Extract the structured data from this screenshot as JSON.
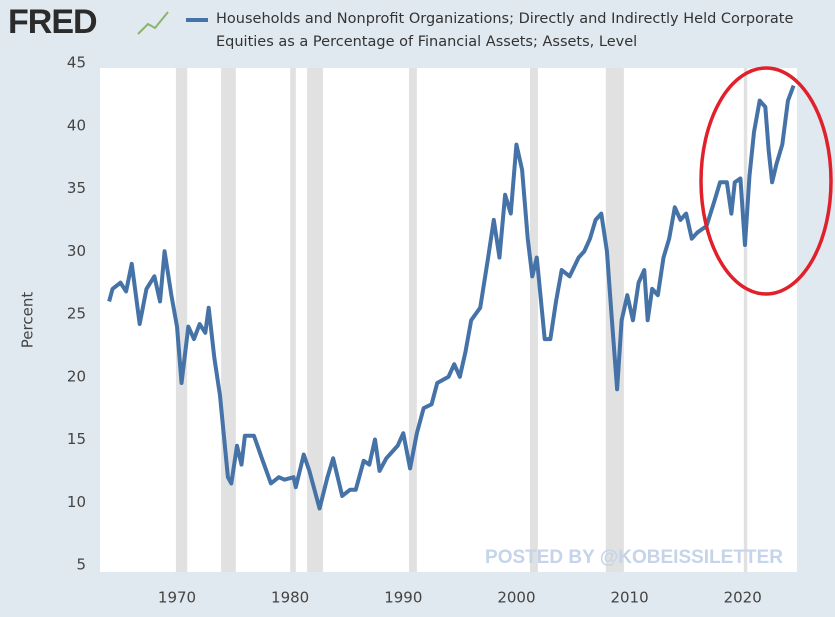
{
  "logo": "FRED",
  "chart_data": {
    "type": "line",
    "y_label": "Percent",
    "annotation": "POSTED BY @KOBEISSILETTER",
    "xlim": [
      1963.9,
      2024.8
    ],
    "xticks": [
      1970,
      1980,
      1990,
      2000,
      2010,
      2020
    ],
    "ylim": [
      5,
      45
    ],
    "yticks": [
      5,
      10,
      15,
      20,
      25,
      30,
      35,
      40,
      45
    ],
    "grid": false,
    "recessions": [
      [
        1969.9,
        1970.9
      ],
      [
        1973.9,
        1975.2
      ],
      [
        1980.0,
        1980.5
      ],
      [
        1981.5,
        1982.9
      ],
      [
        1990.5,
        1991.2
      ],
      [
        2001.2,
        2001.9
      ],
      [
        2007.9,
        2009.5
      ],
      [
        2020.1,
        2020.4
      ]
    ],
    "recession_color": "#e1e1e1",
    "series": [
      {
        "name": "Households and Nonprofit Organizations; Directly and Indirectly Held Corporate Equities as a Percentage of Financial Assets; Assets, Level",
        "color": "#4572a7",
        "x": [
          1964.0,
          1964.3,
          1965.0,
          1965.5,
          1966.0,
          1966.7,
          1967.3,
          1968.0,
          1968.5,
          1968.9,
          1969.5,
          1970.0,
          1970.4,
          1971.0,
          1971.5,
          1972.0,
          1972.5,
          1972.8,
          1973.3,
          1973.8,
          1974.5,
          1974.8,
          1975.3,
          1975.7,
          1976.0,
          1976.8,
          1977.5,
          1978.3,
          1979.0,
          1979.5,
          1980.3,
          1980.5,
          1981.2,
          1981.7,
          1982.3,
          1982.6,
          1983.3,
          1983.8,
          1984.6,
          1985.3,
          1985.8,
          1986.5,
          1987.0,
          1987.5,
          1987.9,
          1988.5,
          1989.5,
          1990.0,
          1990.6,
          1991.2,
          1991.8,
          1992.5,
          1993.0,
          1994.0,
          1994.5,
          1995.0,
          1995.5,
          1996.0,
          1996.8,
          1997.5,
          1998.0,
          1998.5,
          1999.0,
          1999.5,
          2000.0,
          2000.5,
          2001.0,
          2001.4,
          2001.8,
          2002.5,
          2003.0,
          2003.5,
          2004.0,
          2004.7,
          2005.5,
          2006.0,
          2006.5,
          2007.0,
          2007.5,
          2008.0,
          2008.4,
          2008.9,
          2009.3,
          2009.8,
          2010.3,
          2010.8,
          2011.3,
          2011.6,
          2012.0,
          2012.5,
          2013.0,
          2013.5,
          2014.0,
          2014.5,
          2015.0,
          2015.5,
          2016.0,
          2016.8,
          2017.5,
          2018.0,
          2018.6,
          2019.0,
          2019.3,
          2019.8,
          2020.2,
          2020.6,
          2021.0,
          2021.5,
          2022.0,
          2022.3,
          2022.6,
          2023.0,
          2023.5,
          2024.0,
          2024.5
        ],
        "values": [
          26.0,
          27.0,
          27.5,
          26.8,
          29.0,
          24.2,
          27.0,
          28.0,
          26.0,
          30.0,
          26.5,
          24.0,
          19.5,
          24.0,
          23.0,
          24.2,
          23.5,
          25.5,
          21.5,
          18.5,
          12.0,
          11.5,
          14.5,
          13.0,
          15.3,
          15.3,
          13.5,
          11.5,
          12.0,
          11.8,
          12.0,
          11.2,
          13.8,
          12.5,
          10.5,
          9.5,
          12.0,
          13.5,
          10.5,
          11.0,
          11.0,
          13.3,
          13.0,
          15.0,
          12.5,
          13.5,
          14.5,
          15.5,
          12.7,
          15.5,
          17.5,
          17.8,
          19.5,
          20.0,
          21.0,
          20.0,
          22.0,
          24.5,
          25.5,
          29.5,
          32.5,
          29.5,
          34.5,
          33.0,
          38.5,
          36.5,
          31.0,
          28.0,
          29.5,
          23.0,
          23.0,
          26.0,
          28.5,
          28.0,
          29.5,
          30.0,
          31.0,
          32.5,
          33.0,
          30.0,
          25.0,
          19.0,
          24.5,
          26.5,
          24.5,
          27.5,
          28.5,
          24.5,
          27.0,
          26.5,
          29.5,
          31.0,
          33.5,
          32.5,
          33.0,
          31.0,
          31.5,
          32.0,
          34.0,
          35.5,
          35.5,
          33.0,
          35.5,
          35.8,
          30.5,
          36.0,
          39.5,
          42.0,
          41.5,
          38.0,
          35.5,
          37.0,
          38.5,
          42.0,
          43.2
        ]
      }
    ]
  }
}
